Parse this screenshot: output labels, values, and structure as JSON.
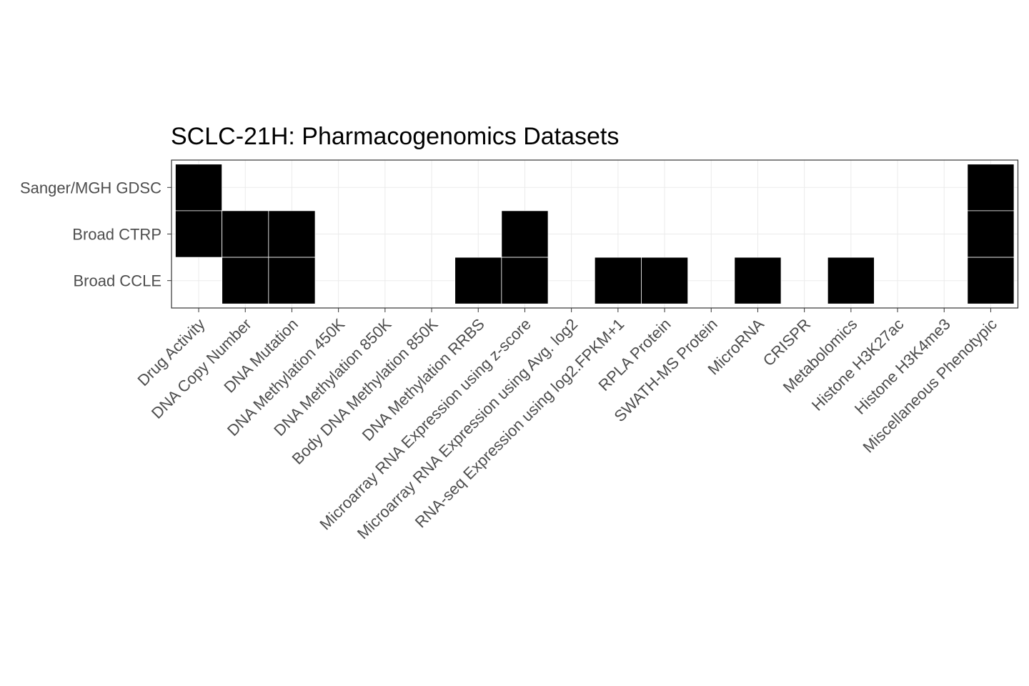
{
  "chart_data": {
    "type": "heatmap",
    "title": "SCLC-21H: Pharmacogenomics Datasets",
    "xlabel": "",
    "ylabel": "",
    "x_categories": [
      "Drug Activity",
      "DNA Copy Number",
      "DNA Mutation",
      "DNA Methylation 450K",
      "DNA Methylation 850K",
      "Body DNA Methylation 850K",
      "DNA Methylation RRBS",
      "Microarray RNA Expression using z-score",
      "Microarray RNA Expression using Avg. log2",
      "RNA-seq Expression using log2.FPKM+1",
      "RPLA Protein",
      "SWATH-MS Protein",
      "MicroRNA",
      "CRISPR",
      "Metabolomics",
      "Histone H3K27ac",
      "Histone H3K4me3",
      "Miscellaneous Phenotypic"
    ],
    "y_categories": [
      "Sanger/MGH GDSC",
      "Broad CTRP",
      "Broad CCLE"
    ],
    "matrix": [
      [
        1,
        0,
        0,
        0,
        0,
        0,
        0,
        0,
        0,
        0,
        0,
        0,
        0,
        0,
        0,
        0,
        0,
        1
      ],
      [
        1,
        1,
        1,
        0,
        0,
        0,
        0,
        1,
        0,
        0,
        0,
        0,
        0,
        0,
        0,
        0,
        0,
        1
      ],
      [
        0,
        1,
        1,
        0,
        0,
        0,
        1,
        1,
        0,
        1,
        1,
        0,
        1,
        0,
        1,
        0,
        0,
        1
      ]
    ],
    "fill_color": "#000000",
    "background_color": "#ffffff",
    "grid": true,
    "legend": "none"
  }
}
